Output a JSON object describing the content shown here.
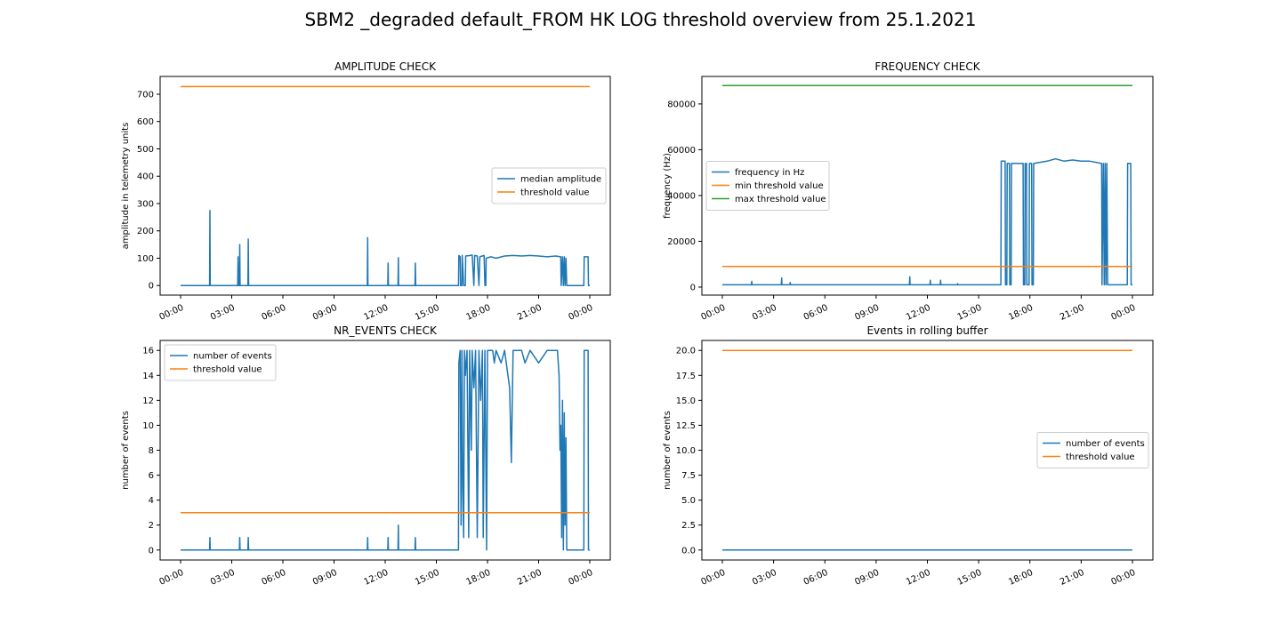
{
  "figure": {
    "title": "SBM2 _degraded default_FROM HK LOG threshold overview from 25.1.2021"
  },
  "colors": {
    "blue": "#1f77b4",
    "orange": "#ff7f0e",
    "green": "#2ca02c"
  },
  "chart_data": [
    {
      "type": "line",
      "title": "AMPLITUDE CHECK",
      "xlabel": "",
      "ylabel": "amplitude in telemetry units",
      "xlim": [
        0,
        24
      ],
      "ylim": [
        -35,
        765
      ],
      "xticks": [
        "00:00",
        "03:00",
        "06:00",
        "09:00",
        "12:00",
        "15:00",
        "18:00",
        "21:00",
        "00:00"
      ],
      "yticks": [
        0,
        100,
        200,
        300,
        400,
        500,
        600,
        700
      ],
      "ytick_labels": [
        "0",
        "100",
        "200",
        "300",
        "400",
        "500",
        "600",
        "700"
      ],
      "legend_position": "center-right",
      "series": [
        {
          "name": "median amplitude",
          "color": "#1f77b4",
          "points": [
            [
              0,
              0
            ],
            [
              1.7,
              0
            ],
            [
              1.72,
              275
            ],
            [
              1.74,
              0
            ],
            [
              3.35,
              0
            ],
            [
              3.37,
              105
            ],
            [
              3.39,
              0
            ],
            [
              3.45,
              0
            ],
            [
              3.47,
              150
            ],
            [
              3.49,
              0
            ],
            [
              3.95,
              0
            ],
            [
              3.97,
              170
            ],
            [
              3.99,
              0
            ],
            [
              10.95,
              0
            ],
            [
              10.97,
              175
            ],
            [
              10.99,
              0
            ],
            [
              12.15,
              0
            ],
            [
              12.17,
              82
            ],
            [
              12.19,
              0
            ],
            [
              12.75,
              0
            ],
            [
              12.77,
              102
            ],
            [
              12.79,
              0
            ],
            [
              13.75,
              0
            ],
            [
              13.77,
              82
            ],
            [
              13.79,
              0
            ],
            [
              16.3,
              0
            ],
            [
              16.32,
              110
            ],
            [
              16.4,
              105
            ],
            [
              16.42,
              0
            ],
            [
              16.5,
              0
            ],
            [
              16.52,
              110
            ],
            [
              16.6,
              0
            ],
            [
              16.7,
              0
            ],
            [
              16.72,
              108
            ],
            [
              17.0,
              110
            ],
            [
              17.1,
              112
            ],
            [
              17.2,
              0
            ],
            [
              17.25,
              110
            ],
            [
              17.4,
              108
            ],
            [
              17.5,
              0
            ],
            [
              17.55,
              105
            ],
            [
              17.8,
              110
            ],
            [
              17.85,
              0
            ],
            [
              17.9,
              0
            ],
            [
              17.92,
              100
            ],
            [
              18.2,
              105
            ],
            [
              18.5,
              100
            ],
            [
              19.0,
              108
            ],
            [
              19.5,
              110
            ],
            [
              20.0,
              108
            ],
            [
              20.5,
              110
            ],
            [
              21.0,
              108
            ],
            [
              21.5,
              105
            ],
            [
              22.0,
              108
            ],
            [
              22.3,
              105
            ],
            [
              22.32,
              0
            ],
            [
              22.4,
              105
            ],
            [
              22.45,
              0
            ],
            [
              22.5,
              105
            ],
            [
              22.55,
              0
            ],
            [
              22.6,
              100
            ],
            [
              22.65,
              0
            ],
            [
              23.65,
              0
            ],
            [
              23.67,
              105
            ],
            [
              23.9,
              105
            ],
            [
              23.92,
              0
            ],
            [
              24,
              0
            ]
          ]
        },
        {
          "name": "threshold value",
          "color": "#ff7f0e",
          "points": [
            [
              0,
              728
            ],
            [
              24,
              728
            ]
          ]
        }
      ]
    },
    {
      "type": "line",
      "title": "FREQUENCY CHECK",
      "xlabel": "",
      "ylabel": "frequency (Hz)",
      "xlim": [
        0,
        24
      ],
      "ylim": [
        -3500,
        92000
      ],
      "xticks": [
        "00:00",
        "03:00",
        "06:00",
        "09:00",
        "12:00",
        "15:00",
        "18:00",
        "21:00",
        "00:00"
      ],
      "yticks": [
        0,
        20000,
        40000,
        60000,
        80000
      ],
      "ytick_labels": [
        "0",
        "20000",
        "40000",
        "60000",
        "80000"
      ],
      "legend_position": "center-left",
      "series": [
        {
          "name": "frequency in Hz",
          "color": "#1f77b4",
          "points": [
            [
              0,
              1000
            ],
            [
              1.7,
              1000
            ],
            [
              1.72,
              2500
            ],
            [
              1.74,
              1000
            ],
            [
              3.45,
              1000
            ],
            [
              3.47,
              4000
            ],
            [
              3.49,
              1000
            ],
            [
              3.95,
              1000
            ],
            [
              3.97,
              2000
            ],
            [
              3.99,
              1000
            ],
            [
              10.95,
              1000
            ],
            [
              10.97,
              4500
            ],
            [
              10.99,
              1000
            ],
            [
              12.15,
              1000
            ],
            [
              12.17,
              3000
            ],
            [
              12.19,
              1000
            ],
            [
              12.75,
              1000
            ],
            [
              12.77,
              3000
            ],
            [
              12.79,
              1000
            ],
            [
              13.75,
              1000
            ],
            [
              13.77,
              1500
            ],
            [
              13.79,
              1000
            ],
            [
              16.3,
              1000
            ],
            [
              16.32,
              55000
            ],
            [
              16.55,
              55000
            ],
            [
              16.57,
              1000
            ],
            [
              16.65,
              1000
            ],
            [
              16.67,
              54000
            ],
            [
              16.8,
              54000
            ],
            [
              16.82,
              1000
            ],
            [
              16.9,
              1000
            ],
            [
              16.92,
              54000
            ],
            [
              17.6,
              54000
            ],
            [
              17.62,
              1000
            ],
            [
              17.7,
              1000
            ],
            [
              17.72,
              54000
            ],
            [
              17.8,
              54000
            ],
            [
              17.82,
              1000
            ],
            [
              17.95,
              1000
            ],
            [
              17.97,
              54000
            ],
            [
              18.1,
              54000
            ],
            [
              18.12,
              1000
            ],
            [
              18.2,
              1000
            ],
            [
              18.22,
              54000
            ],
            [
              19.0,
              55000
            ],
            [
              19.5,
              56000
            ],
            [
              20.0,
              55000
            ],
            [
              20.5,
              55500
            ],
            [
              21.0,
              55000
            ],
            [
              21.5,
              55000
            ],
            [
              22.2,
              54000
            ],
            [
              22.22,
              1000
            ],
            [
              22.3,
              54000
            ],
            [
              22.35,
              1000
            ],
            [
              22.4,
              54000
            ],
            [
              22.45,
              1000
            ],
            [
              22.5,
              54000
            ],
            [
              22.55,
              1000
            ],
            [
              23.7,
              1000
            ],
            [
              23.72,
              54000
            ],
            [
              23.9,
              54000
            ],
            [
              23.92,
              1000
            ],
            [
              24,
              1000
            ]
          ]
        },
        {
          "name": "min threshold value",
          "color": "#ff7f0e",
          "points": [
            [
              0,
              9000
            ],
            [
              24,
              9000
            ]
          ]
        },
        {
          "name": "max threshold value",
          "color": "#2ca02c",
          "points": [
            [
              0,
              88000
            ],
            [
              24,
              88000
            ]
          ]
        }
      ]
    },
    {
      "type": "line",
      "title": "NR_EVENTS CHECK",
      "xlabel": "",
      "ylabel": "number of events",
      "xlim": [
        0,
        24
      ],
      "ylim": [
        -0.8,
        16.8
      ],
      "xticks": [
        "00:00",
        "03:00",
        "06:00",
        "09:00",
        "12:00",
        "15:00",
        "18:00",
        "21:00",
        "00:00"
      ],
      "yticks": [
        0,
        2,
        4,
        6,
        8,
        10,
        12,
        14,
        16
      ],
      "ytick_labels": [
        "0",
        "2",
        "4",
        "6",
        "8",
        "10",
        "12",
        "14",
        "16"
      ],
      "legend_position": "upper-left",
      "series": [
        {
          "name": "number of events",
          "color": "#1f77b4",
          "points": [
            [
              0,
              0
            ],
            [
              1.7,
              0
            ],
            [
              1.72,
              1
            ],
            [
              1.74,
              0
            ],
            [
              3.45,
              0
            ],
            [
              3.47,
              1
            ],
            [
              3.49,
              0
            ],
            [
              3.95,
              0
            ],
            [
              3.97,
              1
            ],
            [
              3.99,
              0
            ],
            [
              10.95,
              0
            ],
            [
              10.97,
              1
            ],
            [
              10.99,
              0
            ],
            [
              12.15,
              0
            ],
            [
              12.17,
              1
            ],
            [
              12.19,
              0
            ],
            [
              12.75,
              0
            ],
            [
              12.77,
              2
            ],
            [
              12.79,
              0
            ],
            [
              13.75,
              0
            ],
            [
              13.77,
              1
            ],
            [
              13.79,
              0
            ],
            [
              16.3,
              0
            ],
            [
              16.32,
              15
            ],
            [
              16.4,
              16
            ],
            [
              16.45,
              2
            ],
            [
              16.5,
              16
            ],
            [
              16.55,
              5
            ],
            [
              16.6,
              1
            ],
            [
              16.65,
              16
            ],
            [
              16.7,
              14
            ],
            [
              16.8,
              16
            ],
            [
              16.9,
              1
            ],
            [
              16.95,
              16
            ],
            [
              17.05,
              8
            ],
            [
              17.1,
              16
            ],
            [
              17.2,
              13
            ],
            [
              17.3,
              16
            ],
            [
              17.4,
              1
            ],
            [
              17.5,
              16
            ],
            [
              17.6,
              12
            ],
            [
              17.7,
              16
            ],
            [
              17.75,
              1
            ],
            [
              17.85,
              16
            ],
            [
              17.95,
              0
            ],
            [
              18.0,
              16
            ],
            [
              18.3,
              16
            ],
            [
              18.4,
              15
            ],
            [
              18.5,
              16
            ],
            [
              18.8,
              15
            ],
            [
              19.0,
              16
            ],
            [
              19.3,
              13
            ],
            [
              19.4,
              7
            ],
            [
              19.5,
              16
            ],
            [
              20.0,
              16
            ],
            [
              20.2,
              15
            ],
            [
              20.5,
              16
            ],
            [
              21.0,
              15
            ],
            [
              21.5,
              16
            ],
            [
              22.1,
              16
            ],
            [
              22.2,
              14
            ],
            [
              22.25,
              8
            ],
            [
              22.3,
              10
            ],
            [
              22.35,
              1
            ],
            [
              22.4,
              12
            ],
            [
              22.45,
              0
            ],
            [
              22.5,
              11
            ],
            [
              22.55,
              2
            ],
            [
              22.6,
              9
            ],
            [
              22.65,
              0
            ],
            [
              23.65,
              0
            ],
            [
              23.67,
              16
            ],
            [
              23.9,
              16
            ],
            [
              23.92,
              0
            ],
            [
              24,
              0
            ]
          ]
        },
        {
          "name": "threshold value",
          "color": "#ff7f0e",
          "points": [
            [
              0,
              3
            ],
            [
              24,
              3
            ]
          ]
        }
      ]
    },
    {
      "type": "line",
      "title": "Events in rolling buffer",
      "xlabel": "",
      "ylabel": "number of events",
      "xlim": [
        0,
        24
      ],
      "ylim": [
        -1,
        21
      ],
      "xticks": [
        "00:00",
        "03:00",
        "06:00",
        "09:00",
        "12:00",
        "15:00",
        "18:00",
        "21:00",
        "00:00"
      ],
      "yticks": [
        0,
        2.5,
        5,
        7.5,
        10,
        12.5,
        15,
        17.5,
        20
      ],
      "ytick_labels": [
        "0.0",
        "2.5",
        "5.0",
        "7.5",
        "10.0",
        "12.5",
        "15.0",
        "17.5",
        "20.0"
      ],
      "legend_position": "center-right",
      "series": [
        {
          "name": "number of events",
          "color": "#1f77b4",
          "points": [
            [
              0,
              0
            ],
            [
              24,
              0
            ]
          ]
        },
        {
          "name": "threshold value",
          "color": "#ff7f0e",
          "points": [
            [
              0,
              20
            ],
            [
              24,
              20
            ]
          ]
        }
      ]
    }
  ]
}
